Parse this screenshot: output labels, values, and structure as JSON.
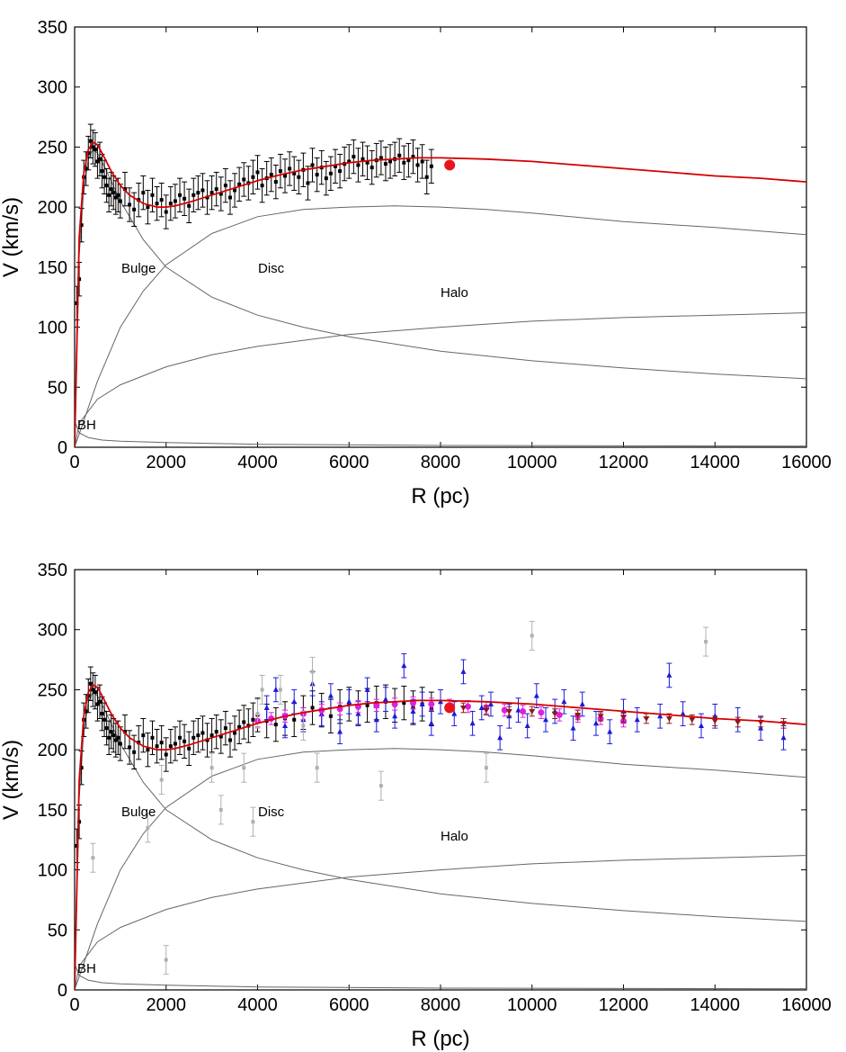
{
  "chart_data": [
    {
      "type": "line",
      "xlabel": "R (pc)",
      "ylabel": "V (km/s)",
      "xlim": [
        0,
        16000
      ],
      "ylim": [
        0,
        350
      ],
      "xticks": [
        0,
        2000,
        4000,
        6000,
        8000,
        10000,
        12000,
        14000,
        16000
      ],
      "yticks": [
        0,
        50,
        100,
        150,
        200,
        250,
        300,
        350
      ],
      "grid": false,
      "annotations": [
        "Bulge",
        "Disc",
        "Halo",
        "BH"
      ],
      "model": {
        "total": {
          "color": "#d40000",
          "x": [
            0,
            100,
            200,
            300,
            400,
            500,
            600,
            800,
            1000,
            1200,
            1500,
            1800,
            2000,
            2200,
            2500,
            3000,
            3500,
            4000,
            4500,
            5000,
            5500,
            6000,
            6500,
            7000,
            7500,
            8000,
            9000,
            10000,
            11000,
            12000,
            13000,
            14000,
            15000,
            16000
          ],
          "y": [
            0,
            175,
            228,
            248,
            254,
            252,
            245,
            230,
            218,
            210,
            203,
            200,
            200,
            201,
            204,
            210,
            216,
            222,
            227,
            231,
            234,
            237,
            239,
            240,
            241,
            241,
            240,
            238,
            235,
            232,
            229,
            226,
            224,
            221
          ]
        },
        "bulge": {
          "color": "#666666",
          "x": [
            0,
            100,
            200,
            300,
            400,
            500,
            700,
            1000,
            1500,
            2000,
            3000,
            4000,
            5000,
            6000,
            8000,
            10000,
            12000,
            14000,
            16000
          ],
          "y": [
            0,
            160,
            215,
            240,
            248,
            245,
            230,
            205,
            173,
            150,
            125,
            110,
            100,
            92,
            80,
            72,
            66,
            61,
            57
          ]
        },
        "disc": {
          "color": "#666666",
          "x": [
            0,
            500,
            1000,
            1500,
            2000,
            3000,
            4000,
            5000,
            6000,
            7000,
            8000,
            9000,
            10000,
            12000,
            14000,
            16000
          ],
          "y": [
            0,
            55,
            100,
            130,
            152,
            178,
            192,
            198,
            200,
            201,
            200,
            198,
            195,
            188,
            183,
            177
          ]
        },
        "halo": {
          "color": "#666666",
          "x": [
            0,
            100,
            500,
            1000,
            2000,
            3000,
            4000,
            6000,
            8000,
            10000,
            12000,
            14000,
            16000
          ],
          "y": [
            0,
            20,
            40,
            52,
            67,
            77,
            84,
            94,
            100,
            105,
            108,
            110,
            112
          ]
        },
        "bh": {
          "color": "#666666",
          "x": [
            0,
            20,
            100,
            300,
            600,
            1000,
            2000,
            4000,
            8000,
            16000
          ],
          "y": [
            30,
            20,
            12,
            8,
            6,
            5,
            4,
            2.5,
            1.5,
            1
          ]
        }
      },
      "sun": {
        "color": "#e8141c",
        "x": 8200,
        "y": 235
      },
      "observations": [
        {
          "name": "inner",
          "color": "#000000",
          "x": [
            50,
            100,
            150,
            200,
            250,
            300,
            350,
            400,
            450,
            500,
            550,
            600,
            650,
            700,
            750,
            800,
            850,
            900,
            950,
            1000,
            1100,
            1200,
            1300,
            1400,
            1500,
            1600,
            1700,
            1800,
            1900,
            2000,
            2100,
            2200,
            2300,
            2400,
            2500,
            2600,
            2700,
            2800,
            2900,
            3000,
            3100,
            3200,
            3300,
            3400,
            3500,
            3600,
            3700,
            3800,
            3900,
            4000,
            4100,
            4200,
            4300,
            4400,
            4500,
            4600,
            4700,
            4800,
            4900,
            5000,
            5100,
            5200,
            5300,
            5400,
            5500,
            5600,
            5700,
            5800,
            5900,
            6000,
            6100,
            6200,
            6300,
            6400,
            6500,
            6600,
            6700,
            6800,
            6900,
            7000,
            7100,
            7200,
            7300,
            7400,
            7500,
            7600,
            7700,
            7800
          ],
          "y": [
            120,
            140,
            185,
            225,
            232,
            245,
            255,
            250,
            248,
            238,
            240,
            230,
            225,
            218,
            210,
            215,
            212,
            208,
            210,
            205,
            215,
            202,
            198,
            206,
            212,
            200,
            210,
            203,
            206,
            196,
            203,
            205,
            210,
            207,
            201,
            210,
            212,
            214,
            208,
            212,
            215,
            211,
            218,
            208,
            214,
            219,
            223,
            220,
            225,
            229,
            218,
            224,
            227,
            221,
            230,
            226,
            232,
            228,
            225,
            231,
            220,
            235,
            227,
            233,
            224,
            228,
            234,
            230,
            236,
            238,
            242,
            235,
            240,
            237,
            233,
            239,
            241,
            236,
            238,
            240,
            243,
            237,
            239,
            242,
            235,
            238,
            225,
            234
          ],
          "err": 14
        }
      ]
    },
    {
      "type": "line",
      "xlabel": "R (pc)",
      "ylabel": "V (km/s)",
      "xlim": [
        0,
        16000
      ],
      "ylim": [
        0,
        350
      ],
      "xticks": [
        0,
        2000,
        4000,
        6000,
        8000,
        10000,
        12000,
        14000,
        16000
      ],
      "yticks": [
        0,
        50,
        100,
        150,
        200,
        250,
        300,
        350
      ],
      "grid": false,
      "annotations": [
        "Bulge",
        "Disc",
        "Halo",
        "BH"
      ],
      "model": {
        "total": {
          "color": "#d40000",
          "x": [
            0,
            100,
            200,
            300,
            400,
            500,
            600,
            800,
            1000,
            1200,
            1500,
            1800,
            2000,
            2200,
            2500,
            3000,
            3500,
            4000,
            4500,
            5000,
            5500,
            6000,
            6500,
            7000,
            7500,
            8000,
            9000,
            10000,
            11000,
            12000,
            13000,
            14000,
            15000,
            16000
          ],
          "y": [
            0,
            175,
            228,
            248,
            254,
            252,
            245,
            230,
            218,
            210,
            203,
            200,
            200,
            201,
            204,
            210,
            216,
            222,
            227,
            231,
            234,
            237,
            239,
            240,
            241,
            241,
            240,
            238,
            235,
            232,
            229,
            226,
            224,
            221
          ]
        },
        "bulge": {
          "color": "#666666",
          "x": [
            0,
            100,
            200,
            300,
            400,
            500,
            700,
            1000,
            1500,
            2000,
            3000,
            4000,
            5000,
            6000,
            8000,
            10000,
            12000,
            14000,
            16000
          ],
          "y": [
            0,
            160,
            215,
            240,
            248,
            245,
            230,
            205,
            173,
            150,
            125,
            110,
            100,
            92,
            80,
            72,
            66,
            61,
            57
          ]
        },
        "disc": {
          "color": "#666666",
          "x": [
            0,
            500,
            1000,
            1500,
            2000,
            3000,
            4000,
            5000,
            6000,
            7000,
            8000,
            9000,
            10000,
            12000,
            14000,
            16000
          ],
          "y": [
            0,
            55,
            100,
            130,
            152,
            178,
            192,
            198,
            200,
            201,
            200,
            198,
            195,
            188,
            183,
            177
          ]
        },
        "halo": {
          "color": "#666666",
          "x": [
            0,
            100,
            500,
            1000,
            2000,
            3000,
            4000,
            6000,
            8000,
            10000,
            12000,
            14000,
            16000
          ],
          "y": [
            0,
            20,
            40,
            52,
            67,
            77,
            84,
            94,
            100,
            105,
            108,
            110,
            112
          ]
        },
        "bh": {
          "color": "#666666",
          "x": [
            0,
            20,
            100,
            300,
            600,
            1000,
            2000,
            4000,
            8000,
            16000
          ],
          "y": [
            30,
            20,
            12,
            8,
            6,
            5,
            4,
            2.5,
            1.5,
            1
          ]
        }
      },
      "sun": {
        "color": "#e8141c",
        "x": 8200,
        "y": 235
      },
      "observations": [
        {
          "name": "inner",
          "color": "#000000",
          "x": [
            50,
            100,
            150,
            200,
            250,
            300,
            350,
            400,
            450,
            500,
            550,
            600,
            650,
            700,
            750,
            800,
            850,
            900,
            950,
            1000,
            1100,
            1200,
            1300,
            1400,
            1500,
            1600,
            1700,
            1800,
            1900,
            2000,
            2100,
            2200,
            2300,
            2400,
            2500,
            2600,
            2700,
            2800,
            2900,
            3000,
            3100,
            3200,
            3300,
            3400,
            3500,
            3600,
            3700,
            3800,
            3900,
            4000,
            4200,
            4400,
            4600,
            4800,
            5000,
            5200,
            5400,
            5600,
            5800,
            6000,
            6200,
            6400,
            6600,
            6800,
            7000,
            7200,
            7400,
            7600,
            7800
          ],
          "y": [
            120,
            140,
            185,
            225,
            232,
            245,
            255,
            250,
            248,
            238,
            240,
            230,
            225,
            218,
            210,
            215,
            212,
            208,
            210,
            205,
            215,
            202,
            198,
            206,
            212,
            200,
            210,
            203,
            206,
            196,
            203,
            205,
            210,
            207,
            201,
            210,
            212,
            214,
            208,
            212,
            215,
            211,
            218,
            208,
            214,
            219,
            223,
            220,
            225,
            229,
            224,
            221,
            226,
            225,
            231,
            235,
            233,
            228,
            236,
            238,
            235,
            237,
            239,
            240,
            237,
            239,
            235,
            238,
            234
          ],
          "err": 14
        },
        {
          "name": "blue",
          "color": "#1a1adc",
          "x": [
            4200,
            4400,
            4600,
            4800,
            5000,
            5200,
            5400,
            5600,
            5800,
            6000,
            6200,
            6400,
            6600,
            6800,
            7000,
            7200,
            7400,
            7600,
            7800,
            8000,
            8300,
            8500,
            8700,
            8900,
            9100,
            9300,
            9500,
            9700,
            9900,
            10100,
            10300,
            10500,
            10700,
            10900,
            11100,
            11400,
            11700,
            12000,
            12300,
            12800,
            13000,
            13300,
            13700,
            14000,
            14500,
            15000,
            15500
          ],
          "y": [
            235,
            250,
            220,
            240,
            225,
            255,
            230,
            245,
            215,
            240,
            230,
            250,
            225,
            242,
            228,
            270,
            232,
            238,
            222,
            240,
            230,
            265,
            222,
            235,
            238,
            210,
            228,
            233,
            220,
            245,
            225,
            232,
            240,
            218,
            238,
            222,
            215,
            232,
            225,
            228,
            262,
            230,
            220,
            228,
            225,
            218,
            210
          ],
          "err": 10
        },
        {
          "name": "magenta",
          "color": "#e020e0",
          "x": [
            4000,
            4300,
            4600,
            5000,
            5400,
            5800,
            6200,
            6600,
            7000,
            7400,
            7800,
            8200,
            8600,
            9000,
            9400,
            9800,
            10200,
            10600,
            11000,
            11500,
            12000
          ],
          "y": [
            224,
            226,
            228,
            230,
            233,
            234,
            236,
            237,
            238,
            239,
            238,
            237,
            236,
            235,
            233,
            232,
            231,
            229,
            228,
            226,
            224
          ],
          "err": 5
        },
        {
          "name": "darkred",
          "color": "#8b1a1a",
          "x": [
            8500,
            9000,
            9500,
            10000,
            10500,
            11000,
            11500,
            12000,
            12500,
            13000,
            13500,
            14000,
            14500,
            15000,
            15500
          ],
          "y": [
            235,
            233,
            232,
            232,
            230,
            229,
            228,
            227,
            226,
            226,
            225,
            224,
            223,
            223,
            222
          ],
          "err": 4
        },
        {
          "name": "grey",
          "color": "#b0b0b0",
          "x": [
            400,
            1600,
            1900,
            2000,
            3000,
            3200,
            3700,
            3900,
            4000,
            4100,
            4500,
            5000,
            5200,
            5300,
            6700,
            9000,
            10000,
            13800
          ],
          "y": [
            110,
            135,
            175,
            25,
            185,
            150,
            185,
            140,
            230,
            250,
            250,
            220,
            265,
            185,
            170,
            185,
            295,
            290
          ],
          "err": 12
        }
      ]
    }
  ]
}
